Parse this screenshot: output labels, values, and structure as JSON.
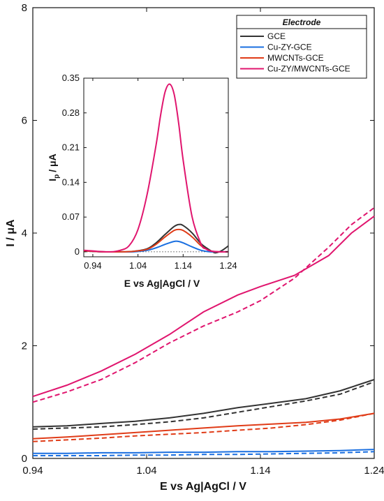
{
  "chart_data": [
    {
      "type": "line",
      "xlabel": "E vs Ag|AgCl / V",
      "ylabel": "I / μA",
      "xlim": [
        0.94,
        1.24
      ],
      "ylim": [
        0,
        8
      ],
      "xticks": [
        "0.94",
        "1.04",
        "1.14",
        "1.24"
      ],
      "yticks": [
        "0",
        "2",
        "4",
        "6",
        "8"
      ],
      "legend": {
        "title": "Electrode",
        "placement": "top-right",
        "entries": [
          "GCE",
          "Cu-ZY-GCE",
          "MWCNTs-GCE",
          "Cu-ZY/MWCNTs-GCE"
        ]
      },
      "series": [
        {
          "name": "GCE",
          "color": "#333333",
          "style": "solid",
          "x": [
            0.94,
            0.97,
            1.0,
            1.03,
            1.06,
            1.09,
            1.12,
            1.15,
            1.18,
            1.21,
            1.24
          ],
          "y": [
            0.56,
            0.58,
            0.62,
            0.66,
            0.72,
            0.8,
            0.9,
            0.98,
            1.06,
            1.2,
            1.4
          ]
        },
        {
          "name": "GCE",
          "color": "#333333",
          "style": "dashed",
          "x": [
            0.94,
            0.97,
            1.0,
            1.03,
            1.06,
            1.09,
            1.12,
            1.15,
            1.18,
            1.21,
            1.24
          ],
          "y": [
            0.52,
            0.54,
            0.56,
            0.6,
            0.65,
            0.72,
            0.82,
            0.92,
            1.02,
            1.14,
            1.36
          ]
        },
        {
          "name": "Cu-ZY-GCE",
          "color": "#1a6fe0",
          "style": "solid",
          "x": [
            0.94,
            0.97,
            1.0,
            1.03,
            1.06,
            1.09,
            1.12,
            1.15,
            1.18,
            1.21,
            1.24
          ],
          "y": [
            0.09,
            0.09,
            0.1,
            0.1,
            0.11,
            0.11,
            0.12,
            0.12,
            0.13,
            0.14,
            0.16
          ]
        },
        {
          "name": "Cu-ZY-GCE",
          "color": "#1a6fe0",
          "style": "dashed",
          "x": [
            0.94,
            0.97,
            1.0,
            1.03,
            1.06,
            1.09,
            1.12,
            1.15,
            1.18,
            1.21,
            1.24
          ],
          "y": [
            0.05,
            0.05,
            0.05,
            0.06,
            0.06,
            0.07,
            0.07,
            0.08,
            0.09,
            0.1,
            0.12
          ]
        },
        {
          "name": "MWCNTs-GCE",
          "color": "#e03c18",
          "style": "solid",
          "x": [
            0.94,
            0.97,
            1.0,
            1.03,
            1.06,
            1.09,
            1.12,
            1.15,
            1.18,
            1.21,
            1.24
          ],
          "y": [
            0.35,
            0.38,
            0.42,
            0.46,
            0.5,
            0.54,
            0.58,
            0.61,
            0.64,
            0.7,
            0.8
          ]
        },
        {
          "name": "MWCNTs-GCE",
          "color": "#e03c18",
          "style": "dashed",
          "x": [
            0.94,
            0.97,
            1.0,
            1.03,
            1.06,
            1.09,
            1.12,
            1.15,
            1.18,
            1.21,
            1.24
          ],
          "y": [
            0.3,
            0.33,
            0.36,
            0.4,
            0.43,
            0.46,
            0.5,
            0.54,
            0.6,
            0.68,
            0.8
          ]
        },
        {
          "name": "Cu-ZY/MWCNTs-GCE",
          "color": "#e0156e",
          "style": "solid",
          "x": [
            0.94,
            0.97,
            1.0,
            1.03,
            1.06,
            1.09,
            1.12,
            1.14,
            1.17,
            1.2,
            1.22,
            1.24
          ],
          "y": [
            1.1,
            1.3,
            1.55,
            1.85,
            2.2,
            2.6,
            2.9,
            3.05,
            3.25,
            3.6,
            4.0,
            4.3
          ]
        },
        {
          "name": "Cu-ZY/MWCNTs-GCE",
          "color": "#e0156e",
          "style": "dashed",
          "x": [
            0.94,
            0.97,
            1.0,
            1.03,
            1.06,
            1.09,
            1.12,
            1.14,
            1.17,
            1.2,
            1.22,
            1.24
          ],
          "y": [
            1.0,
            1.18,
            1.4,
            1.7,
            2.05,
            2.35,
            2.6,
            2.8,
            3.2,
            3.75,
            4.15,
            4.45
          ]
        }
      ]
    },
    {
      "type": "line",
      "xlabel": "E vs Ag|AgCl / V",
      "ylabel": "I",
      "ylabel_sub": "p",
      "ylabel_unit": "/ μA",
      "xlim": [
        0.92,
        1.24
      ],
      "ylim": [
        -0.01,
        0.35
      ],
      "xticks": [
        "0.94",
        "1.04",
        "1.14",
        "1.24"
      ],
      "yticks": [
        "0",
        "0.07",
        "0.14",
        "0.21",
        "0.28",
        "0.35"
      ],
      "baseline": 0,
      "series": [
        {
          "name": "GCE",
          "color": "#333333",
          "x": [
            0.92,
            0.96,
            1.0,
            1.03,
            1.06,
            1.08,
            1.1,
            1.12,
            1.13,
            1.14,
            1.16,
            1.18,
            1.2,
            1.21,
            1.22,
            1.23,
            1.24
          ],
          "y": [
            0.002,
            0.0,
            0.0,
            0.001,
            0.006,
            0.018,
            0.035,
            0.051,
            0.055,
            0.053,
            0.038,
            0.016,
            0.003,
            -0.002,
            0.0,
            0.005,
            0.012
          ]
        },
        {
          "name": "Cu-ZY-GCE",
          "color": "#1a6fe0",
          "x": [
            0.92,
            0.96,
            1.0,
            1.03,
            1.06,
            1.08,
            1.1,
            1.12,
            1.13,
            1.14,
            1.16,
            1.18,
            1.2,
            1.22,
            1.24
          ],
          "y": [
            0.002,
            0.0,
            0.0,
            0.0,
            0.003,
            0.008,
            0.015,
            0.021,
            0.021,
            0.018,
            0.01,
            0.003,
            0.0,
            0.0,
            0.0
          ]
        },
        {
          "name": "MWCNTs-GCE",
          "color": "#e03c18",
          "x": [
            0.92,
            0.96,
            1.0,
            1.03,
            1.06,
            1.08,
            1.1,
            1.12,
            1.13,
            1.14,
            1.16,
            1.18,
            1.2,
            1.22,
            1.24
          ],
          "y": [
            0.002,
            0.0,
            0.0,
            0.001,
            0.005,
            0.015,
            0.03,
            0.043,
            0.045,
            0.043,
            0.03,
            0.012,
            0.002,
            0.0,
            0.0
          ]
        },
        {
          "name": "Cu-ZY/MWCNTs-GCE",
          "color": "#e0156e",
          "x": [
            0.92,
            0.95,
            0.98,
            1.0,
            1.02,
            1.04,
            1.06,
            1.08,
            1.09,
            1.1,
            1.11,
            1.12,
            1.13,
            1.14,
            1.16,
            1.18,
            1.19,
            1.2,
            1.22,
            1.24
          ],
          "y": [
            0.003,
            0.001,
            0.0,
            0.003,
            0.012,
            0.045,
            0.115,
            0.215,
            0.275,
            0.322,
            0.338,
            0.318,
            0.26,
            0.185,
            0.07,
            0.015,
            0.006,
            0.002,
            0.0,
            0.0
          ]
        }
      ]
    }
  ]
}
